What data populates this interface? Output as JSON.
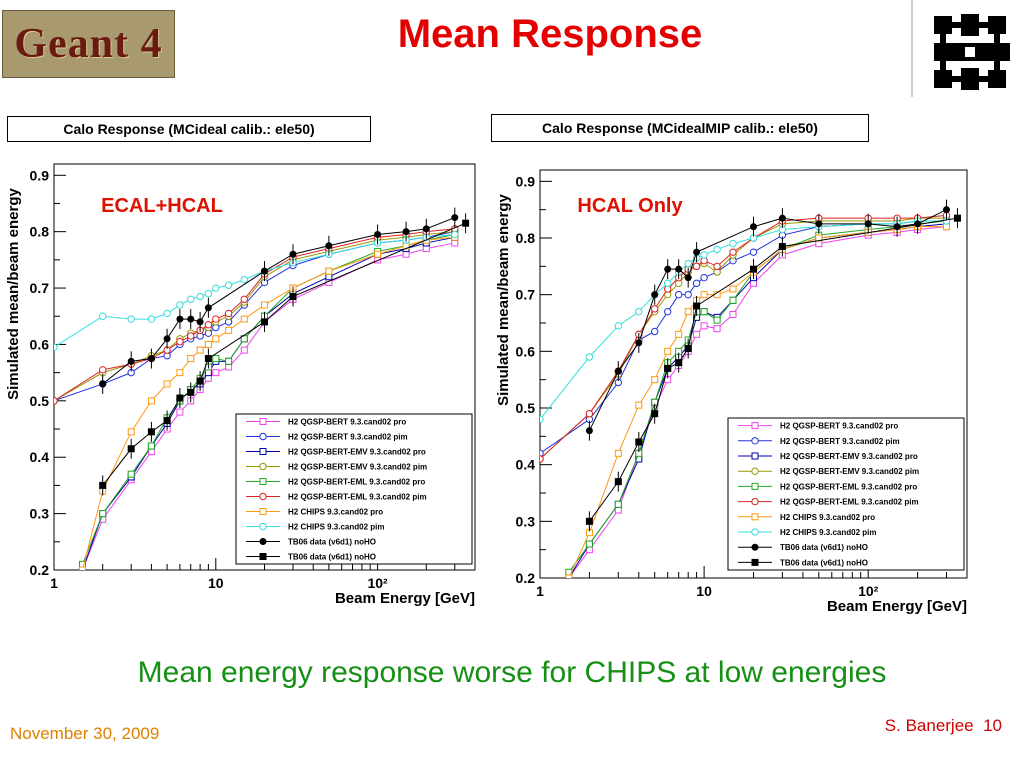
{
  "header": {
    "logo_text": "Geant 4",
    "title": "Mean Response"
  },
  "footer": {
    "statement": "Mean energy response worse for CHIPS at low energies",
    "date": "November 30, 2009",
    "author": "S. Banerjee",
    "page_number": "10"
  },
  "chart_data": [
    {
      "type": "line",
      "title": "Calo  Response (MCideal  calib.: ele50)",
      "annotation": "ECAL+HCAL",
      "xlabel": "Beam Energy [GeV]",
      "ylabel": "Simulated mean/beam energy",
      "xscale": "log",
      "xlim": [
        1,
        400
      ],
      "ylim": [
        0.2,
        0.92
      ],
      "xticks": [
        "1",
        "10",
        "10²"
      ],
      "yticks": [
        "0.2",
        "0.3",
        "0.4",
        "0.5",
        "0.6",
        "0.7",
        "0.8",
        "0.9"
      ],
      "legend_position": "bottom-right",
      "series": [
        {
          "name": "H2  QGSP-BERT  9.3.cand02  pro",
          "color": "#ee44ee",
          "marker": "open-square",
          "x": [
            1.5,
            2,
            3,
            4,
            5,
            6,
            7,
            8,
            9,
            10,
            12,
            15,
            20,
            30,
            50,
            100,
            150,
            200,
            300
          ],
          "y": [
            0.2,
            0.29,
            0.36,
            0.41,
            0.45,
            0.48,
            0.5,
            0.52,
            0.54,
            0.55,
            0.56,
            0.59,
            0.64,
            0.68,
            0.71,
            0.75,
            0.76,
            0.77,
            0.78
          ]
        },
        {
          "name": "H2  QGSP-BERT  9.3.cand02  pim",
          "color": "#2233dd",
          "marker": "open-circle",
          "x": [
            1,
            2,
            3,
            4,
            5,
            6,
            7,
            8,
            9,
            10,
            12,
            15,
            20,
            30,
            50,
            100,
            150,
            200,
            300
          ],
          "y": [
            0.5,
            0.53,
            0.55,
            0.575,
            0.58,
            0.6,
            0.61,
            0.615,
            0.62,
            0.63,
            0.64,
            0.67,
            0.71,
            0.74,
            0.76,
            0.78,
            0.785,
            0.79,
            0.8
          ]
        },
        {
          "name": "H2  QGSP-BERT-EMV  9.3.cand02  pro",
          "color": "#0000aa",
          "marker": "open-square",
          "x": [
            1.5,
            2,
            3,
            4,
            5,
            6,
            7,
            8,
            9,
            10,
            12,
            15,
            20,
            30,
            50,
            100,
            150,
            200,
            300
          ],
          "y": [
            0.2,
            0.3,
            0.365,
            0.42,
            0.46,
            0.5,
            0.52,
            0.53,
            0.55,
            0.57,
            0.57,
            0.61,
            0.65,
            0.69,
            0.72,
            0.76,
            0.77,
            0.78,
            0.79
          ]
        },
        {
          "name": "H2  QGSP-BERT-EMV  9.3.cand02  pim",
          "color": "#999900",
          "marker": "open-circle",
          "x": [
            1,
            2,
            3,
            4,
            5,
            6,
            7,
            8,
            9,
            10,
            12,
            15,
            20,
            30,
            50,
            100,
            150,
            200,
            300
          ],
          "y": [
            0.5,
            0.55,
            0.565,
            0.58,
            0.59,
            0.61,
            0.62,
            0.625,
            0.63,
            0.64,
            0.65,
            0.675,
            0.72,
            0.75,
            0.765,
            0.785,
            0.79,
            0.795,
            0.8
          ]
        },
        {
          "name": "H2  QGSP-BERT-EML  9.3.cand02  pro",
          "color": "#22aa22",
          "marker": "open-square",
          "x": [
            1.5,
            2,
            3,
            4,
            5,
            6,
            7,
            8,
            9,
            10,
            12,
            15,
            20,
            30,
            50,
            100,
            150,
            200,
            300
          ],
          "y": [
            0.21,
            0.3,
            0.37,
            0.42,
            0.47,
            0.5,
            0.52,
            0.54,
            0.56,
            0.575,
            0.57,
            0.61,
            0.65,
            0.7,
            0.73,
            0.765,
            0.775,
            0.785,
            0.795
          ]
        },
        {
          "name": "H2  QGSP-BERT-EML  9.3.cand02  pim",
          "color": "#dd2222",
          "marker": "open-circle",
          "x": [
            1,
            2,
            3,
            4,
            5,
            6,
            7,
            8,
            9,
            10,
            12,
            15,
            20,
            30,
            50,
            100,
            150,
            200,
            300
          ],
          "y": [
            0.5,
            0.555,
            0.565,
            0.575,
            0.59,
            0.605,
            0.615,
            0.625,
            0.635,
            0.645,
            0.655,
            0.68,
            0.725,
            0.755,
            0.77,
            0.79,
            0.795,
            0.8,
            0.805
          ]
        },
        {
          "name": "H2  CHIPS  9.3.cand02  pro",
          "color": "#ff9911",
          "marker": "open-square",
          "x": [
            1.5,
            2,
            3,
            4,
            5,
            6,
            7,
            8,
            9,
            10,
            12,
            15,
            20,
            30,
            50,
            100,
            150,
            200,
            300
          ],
          "y": [
            0.2,
            0.34,
            0.445,
            0.5,
            0.53,
            0.55,
            0.575,
            0.59,
            0.6,
            0.61,
            0.625,
            0.645,
            0.67,
            0.7,
            0.73,
            0.76,
            0.775,
            0.785,
            0.79
          ]
        },
        {
          "name": "H2  CHIPS  9.3.cand02  pim",
          "color": "#33dddd",
          "marker": "open-circle",
          "x": [
            1,
            2,
            3,
            4,
            5,
            6,
            7,
            8,
            9,
            10,
            12,
            15,
            20,
            30,
            50,
            100,
            150,
            200,
            300
          ],
          "y": [
            0.595,
            0.65,
            0.645,
            0.645,
            0.655,
            0.67,
            0.68,
            0.685,
            0.69,
            0.7,
            0.705,
            0.715,
            0.73,
            0.745,
            0.76,
            0.78,
            0.785,
            0.79,
            0.795
          ]
        },
        {
          "name": "TB06 data (v6d1) noHO",
          "color": "#000000",
          "marker": "filled-circle",
          "x": [
            2,
            3,
            4,
            5,
            6,
            7,
            8,
            9,
            20,
            30,
            50,
            100,
            150,
            200,
            300
          ],
          "y": [
            0.53,
            0.57,
            0.575,
            0.61,
            0.645,
            0.645,
            0.64,
            0.665,
            0.73,
            0.76,
            0.775,
            0.795,
            0.8,
            0.805,
            0.825
          ]
        },
        {
          "name": "TB06 data (v6d1) noHO",
          "color": "#000000",
          "marker": "filled-square",
          "x": [
            2,
            3,
            4,
            5,
            6,
            7,
            8,
            9,
            20,
            30,
            350
          ],
          "y": [
            0.35,
            0.415,
            0.445,
            0.465,
            0.505,
            0.515,
            0.535,
            0.575,
            0.64,
            0.685,
            0.815
          ]
        }
      ]
    },
    {
      "type": "line",
      "title": "Calo  Response (MCidealMIP  calib.: ele50)",
      "annotation": "HCAL Only",
      "xlabel": "Beam Energy [GeV]",
      "ylabel": "Simulated mean/beam energy",
      "xscale": "log",
      "xlim": [
        1,
        400
      ],
      "ylim": [
        0.2,
        0.92
      ],
      "xticks": [
        "1",
        "10",
        "10²"
      ],
      "yticks": [
        "0.2",
        "0.3",
        "0.4",
        "0.5",
        "0.6",
        "0.7",
        "0.8",
        "0.9"
      ],
      "legend_position": "bottom-right",
      "series": [
        {
          "name": "H2  QGSP-BERT  9.3.cand02  pro",
          "color": "#ee44ee",
          "marker": "open-square",
          "x": [
            1.5,
            2,
            3,
            4,
            5,
            6,
            7,
            8,
            9,
            10,
            12,
            15,
            20,
            30,
            50,
            100,
            150,
            200,
            300
          ],
          "y": [
            0.2,
            0.25,
            0.32,
            0.42,
            0.5,
            0.55,
            0.575,
            0.6,
            0.63,
            0.645,
            0.64,
            0.665,
            0.72,
            0.77,
            0.79,
            0.805,
            0.81,
            0.815,
            0.82
          ]
        },
        {
          "name": "H2  QGSP-BERT  9.3.cand02  pim",
          "color": "#2233dd",
          "marker": "open-circle",
          "x": [
            1,
            2,
            3,
            4,
            5,
            6,
            7,
            8,
            9,
            10,
            12,
            15,
            20,
            30,
            50,
            100,
            150,
            200,
            300
          ],
          "y": [
            0.42,
            0.48,
            0.545,
            0.62,
            0.635,
            0.67,
            0.7,
            0.7,
            0.72,
            0.73,
            0.74,
            0.76,
            0.775,
            0.805,
            0.82,
            0.825,
            0.825,
            0.83,
            0.83
          ]
        },
        {
          "name": "H2  QGSP-BERT-EMV  9.3.cand02  pro",
          "color": "#0000aa",
          "marker": "open-square",
          "x": [
            1.5,
            2,
            3,
            4,
            5,
            6,
            7,
            8,
            9,
            10,
            12,
            15,
            20,
            30,
            50,
            100,
            150,
            200,
            300
          ],
          "y": [
            0.2,
            0.26,
            0.33,
            0.41,
            0.51,
            0.57,
            0.59,
            0.61,
            0.66,
            0.67,
            0.66,
            0.69,
            0.73,
            0.78,
            0.8,
            0.81,
            0.815,
            0.82,
            0.825
          ]
        },
        {
          "name": "H2  QGSP-BERT-EMV  9.3.cand02  pim",
          "color": "#999900",
          "marker": "open-circle",
          "x": [
            1,
            2,
            3,
            4,
            5,
            6,
            7,
            8,
            9,
            10,
            12,
            15,
            20,
            30,
            50,
            100,
            150,
            200,
            300
          ],
          "y": [
            0.41,
            0.49,
            0.56,
            0.63,
            0.67,
            0.7,
            0.72,
            0.74,
            0.75,
            0.755,
            0.74,
            0.77,
            0.8,
            0.825,
            0.83,
            0.83,
            0.83,
            0.835,
            0.835
          ]
        },
        {
          "name": "H2  QGSP-BERT-EML  9.3.cand02  pro",
          "color": "#22aa22",
          "marker": "open-square",
          "x": [
            1.5,
            2,
            3,
            4,
            5,
            6,
            7,
            8,
            9,
            10,
            12,
            15,
            20,
            30,
            50,
            100,
            150,
            200,
            300
          ],
          "y": [
            0.21,
            0.26,
            0.33,
            0.42,
            0.51,
            0.58,
            0.6,
            0.62,
            0.67,
            0.67,
            0.655,
            0.69,
            0.74,
            0.78,
            0.805,
            0.815,
            0.82,
            0.825,
            0.83
          ]
        },
        {
          "name": "H2  QGSP-BERT-EML  9.3.cand02  pim",
          "color": "#dd2222",
          "marker": "open-circle",
          "x": [
            1,
            2,
            3,
            4,
            5,
            6,
            7,
            8,
            9,
            10,
            12,
            15,
            20,
            30,
            50,
            100,
            150,
            200,
            300
          ],
          "y": [
            0.41,
            0.49,
            0.565,
            0.63,
            0.675,
            0.71,
            0.73,
            0.745,
            0.75,
            0.76,
            0.75,
            0.775,
            0.8,
            0.83,
            0.835,
            0.835,
            0.835,
            0.835,
            0.84
          ]
        },
        {
          "name": "H2  CHIPS  9.3.cand02  pro",
          "color": "#ff9911",
          "marker": "open-square",
          "x": [
            1.5,
            2,
            3,
            4,
            5,
            6,
            7,
            8,
            9,
            10,
            12,
            15,
            20,
            30,
            50,
            100,
            150,
            200,
            300
          ],
          "y": [
            0.2,
            0.28,
            0.42,
            0.505,
            0.55,
            0.6,
            0.63,
            0.67,
            0.69,
            0.7,
            0.7,
            0.71,
            0.74,
            0.78,
            0.8,
            0.81,
            0.815,
            0.82,
            0.82
          ]
        },
        {
          "name": "H2  CHIPS  9.3.cand02  pim",
          "color": "#33dddd",
          "marker": "open-circle",
          "x": [
            1,
            2,
            3,
            4,
            5,
            6,
            7,
            8,
            9,
            10,
            12,
            15,
            20,
            30,
            50,
            100,
            150,
            200,
            300
          ],
          "y": [
            0.48,
            0.59,
            0.645,
            0.67,
            0.7,
            0.72,
            0.74,
            0.755,
            0.765,
            0.77,
            0.78,
            0.79,
            0.8,
            0.815,
            0.82,
            0.825,
            0.825,
            0.83,
            0.83
          ]
        },
        {
          "name": "TB06 data (v6d1) noHO",
          "color": "#000000",
          "marker": "filled-circle",
          "x": [
            2,
            3,
            4,
            5,
            6,
            7,
            8,
            9,
            20,
            30,
            50,
            100,
            150,
            200,
            300
          ],
          "y": [
            0.46,
            0.565,
            0.615,
            0.7,
            0.745,
            0.745,
            0.73,
            0.775,
            0.82,
            0.835,
            0.825,
            0.825,
            0.82,
            0.825,
            0.85
          ]
        },
        {
          "name": "TB06 data (v6d1) noHO",
          "color": "#000000",
          "marker": "filled-square",
          "x": [
            2,
            3,
            4,
            5,
            6,
            7,
            8,
            9,
            20,
            30,
            350
          ],
          "y": [
            0.3,
            0.37,
            0.44,
            0.49,
            0.57,
            0.58,
            0.605,
            0.68,
            0.745,
            0.785,
            0.835
          ]
        }
      ]
    }
  ]
}
